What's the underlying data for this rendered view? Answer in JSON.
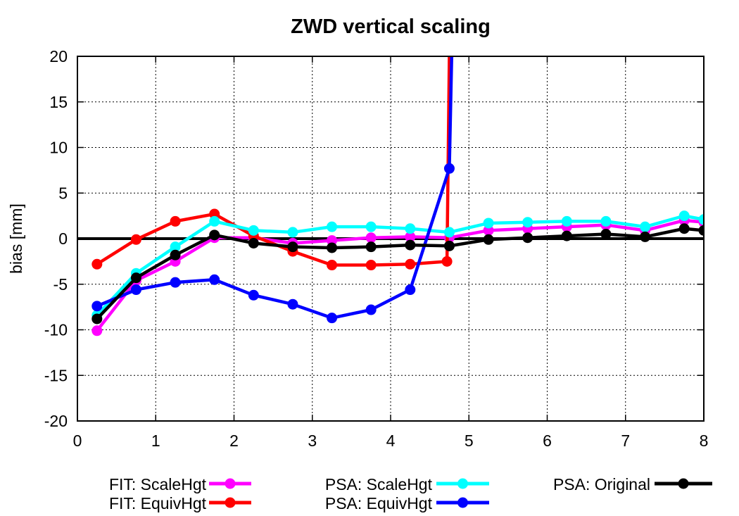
{
  "chart_data": {
    "type": "line",
    "title": "ZWD vertical scaling",
    "xlabel": "",
    "ylabel": "bias [mm]",
    "xlim": [
      0,
      8
    ],
    "ylim": [
      -20,
      20
    ],
    "xticks": [
      0,
      1,
      2,
      3,
      4,
      5,
      6,
      7,
      8
    ],
    "yticks": [
      -20,
      -15,
      -10,
      -5,
      0,
      5,
      10,
      15,
      20
    ],
    "grid": true,
    "zero_line": 0,
    "legend_position": "bottom",
    "series": [
      {
        "name": "FIT: ScaleHgt",
        "color": "#ff00ff",
        "x": [
          0.25,
          0.75,
          1.25,
          1.75,
          2.25,
          2.75,
          3.25,
          3.75,
          4.25,
          4.75,
          5.25,
          5.75,
          6.25,
          6.75,
          7.25,
          7.75,
          8.0
        ],
        "y": [
          -10.1,
          -4.6,
          -2.5,
          0.1,
          0.1,
          -0.5,
          -0.2,
          0.1,
          0.2,
          0.1,
          0.9,
          1.1,
          1.3,
          1.5,
          0.9,
          2.0,
          1.8
        ]
      },
      {
        "name": "FIT: EquivHgt",
        "color": "#ff0000",
        "x": [
          0.25,
          0.75,
          1.25,
          1.75,
          2.25,
          2.75,
          3.25,
          3.75,
          4.25,
          4.72,
          4.75,
          4.77
        ],
        "y": [
          -2.8,
          -0.1,
          1.9,
          2.7,
          0.3,
          -1.4,
          -2.9,
          -2.9,
          -2.8,
          -2.5,
          20,
          20
        ],
        "markers": [
          true,
          true,
          true,
          true,
          true,
          true,
          true,
          true,
          true,
          true,
          false,
          false
        ]
      },
      {
        "name": "PSA: ScaleHgt",
        "color": "#00ffff",
        "x": [
          0.25,
          0.75,
          1.25,
          1.75,
          2.25,
          2.75,
          3.25,
          3.75,
          4.25,
          4.75,
          5.25,
          5.75,
          6.25,
          6.75,
          7.25,
          7.75,
          8.0
        ],
        "y": [
          -8.4,
          -3.8,
          -0.9,
          1.9,
          0.9,
          0.7,
          1.3,
          1.3,
          1.1,
          0.7,
          1.7,
          1.8,
          1.9,
          1.9,
          1.3,
          2.5,
          2.1
        ]
      },
      {
        "name": "PSA: EquivHgt",
        "color": "#0000ff",
        "x": [
          0.25,
          0.75,
          1.25,
          1.75,
          2.25,
          2.75,
          3.25,
          3.75,
          4.25,
          4.75,
          4.78
        ],
        "y": [
          -7.4,
          -5.6,
          -4.8,
          -4.5,
          -6.2,
          -7.2,
          -8.7,
          -7.8,
          -5.6,
          7.7,
          20
        ],
        "markers": [
          true,
          true,
          true,
          true,
          true,
          true,
          true,
          true,
          true,
          true,
          false
        ]
      },
      {
        "name": "PSA: Original",
        "color": "#000000",
        "x": [
          0.25,
          0.75,
          1.25,
          1.75,
          2.25,
          2.75,
          3.25,
          3.75,
          4.25,
          4.75,
          5.25,
          5.75,
          6.25,
          6.75,
          7.25,
          7.75,
          8.0
        ],
        "y": [
          -8.8,
          -4.3,
          -1.8,
          0.4,
          -0.5,
          -0.9,
          -1.0,
          -0.9,
          -0.7,
          -0.8,
          -0.1,
          0.1,
          0.3,
          0.5,
          0.2,
          1.1,
          0.9
        ]
      }
    ]
  }
}
